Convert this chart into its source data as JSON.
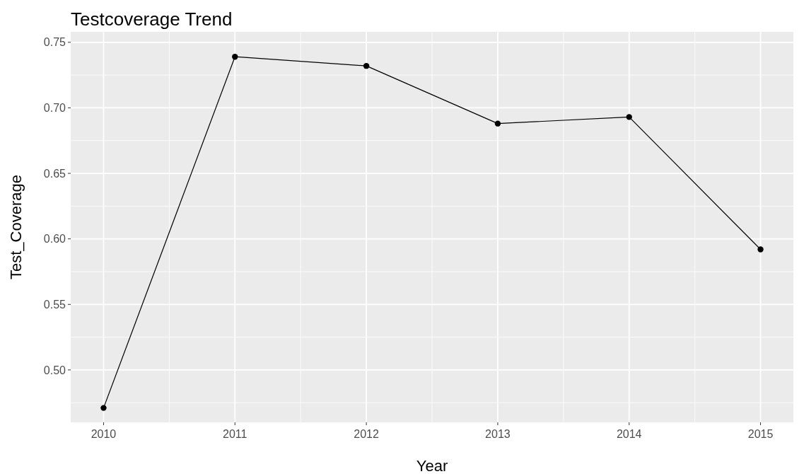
{
  "chart_data": {
    "type": "line",
    "title": "Testcoverage Trend",
    "xlabel": "Year",
    "ylabel": "Test_Coverage",
    "x": [
      2010,
      2011,
      2012,
      2013,
      2014,
      2015
    ],
    "series": [
      {
        "color": "#000000",
        "values": [
          0.471,
          0.739,
          0.732,
          0.688,
          0.693,
          0.592
        ]
      }
    ],
    "xlim": [
      2009.75,
      2015.25
    ],
    "xticks": [
      2010,
      2011,
      2012,
      2013,
      2014,
      2015
    ],
    "ylim": [
      0.46,
      0.758
    ],
    "yticks": [
      {
        "value": 0.5,
        "label": "0.50"
      },
      {
        "value": 0.55,
        "label": "0.55"
      },
      {
        "value": 0.6,
        "label": "0.60"
      },
      {
        "value": 0.65,
        "label": "0.65"
      },
      {
        "value": 0.7,
        "label": "0.70"
      },
      {
        "value": 0.75,
        "label": "0.75"
      }
    ],
    "grid": true,
    "marker": "circle",
    "line_style": "solid"
  }
}
